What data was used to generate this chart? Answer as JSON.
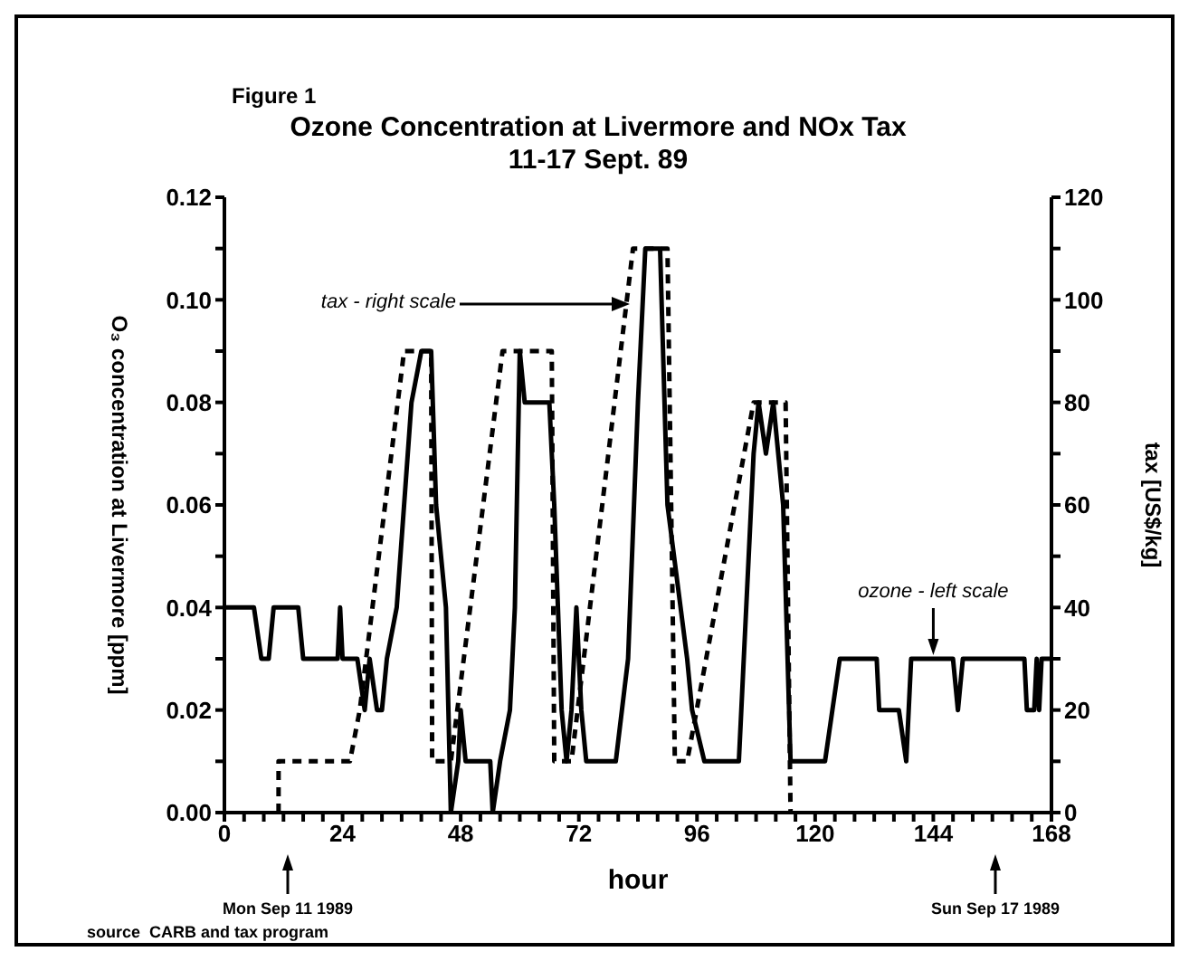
{
  "chart_data": {
    "type": "line",
    "title": "Ozone Concentration at Livermore and NOx Tax",
    "subtitle": "11-17 Sept. 89",
    "xlabel": "hour",
    "ylabel": "O₃ concentration at Livermore [ppm]",
    "y2label": "tax [US$/kg]",
    "annotations": [
      "Figure 1",
      "source  CARB and tax program",
      "tax - right scale",
      "Mon Sep 11 1989",
      "Sun Sep 17 1989",
      {
        "text": "ozone - left scale",
        "x": 144,
        "y": 0.03
      }
    ],
    "series": [
      {
        "color": "#000000",
        "line_style": "solid",
        "x": [
          0,
          6,
          7.5,
          9,
          10,
          15,
          16,
          23,
          23.5,
          24,
          27,
          28.5,
          29.5,
          31,
          32,
          33,
          35,
          38,
          40,
          42,
          43,
          45,
          46,
          47.5,
          48,
          49,
          54,
          54.5,
          56,
          58,
          59,
          60,
          61,
          66,
          67,
          68.5,
          69.5,
          70.5,
          71.5,
          72.5,
          73.5,
          79.5,
          82,
          84,
          85.5,
          88.5,
          90,
          94,
          95,
          97.5,
          104.5,
          107.5,
          108.5,
          110,
          111.5,
          113.5,
          115,
          122,
          123.5,
          125,
          132.5,
          133,
          137,
          138.5,
          139.5,
          148,
          149,
          150,
          162.5,
          163,
          164.5,
          165,
          165.5,
          166,
          168
        ],
        "values": [
          0.04,
          0.04,
          0.03,
          0.03,
          0.04,
          0.04,
          0.03,
          0.03,
          0.04,
          0.03,
          0.03,
          0.02,
          0.03,
          0.02,
          0.02,
          0.03,
          0.04,
          0.08,
          0.09,
          0.09,
          0.06,
          0.04,
          0,
          0.01,
          0.02,
          0.01,
          0.01,
          0,
          0.01,
          0.02,
          0.04,
          0.09,
          0.08,
          0.08,
          0.06,
          0.02,
          0.01,
          0.02,
          0.04,
          0.02,
          0.01,
          0.01,
          0.03,
          0.08,
          0.11,
          0.11,
          0.06,
          0.03,
          0.02,
          0.01,
          0.01,
          0.07,
          0.08,
          0.07,
          0.08,
          0.06,
          0.01,
          0.01,
          0.02,
          0.03,
          0.03,
          0.02,
          0.02,
          0.01,
          0.03,
          0.03,
          0.02,
          0.03,
          0.03,
          0.02,
          0.02,
          0.03,
          0.02,
          0.03,
          0.03
        ]
      },
      {
        "color": "#000000",
        "line_style": "dashed",
        "axis": "y2",
        "x": [
          11,
          11,
          25.5,
          27.5,
          36.5,
          42,
          42.2,
          46,
          56.5,
          66.5,
          67,
          70.5,
          83,
          90,
          91.5,
          94,
          107.5,
          114,
          115
        ],
        "values": [
          0,
          10,
          10,
          20,
          90,
          90,
          10,
          10,
          90,
          90,
          10,
          10,
          110,
          110,
          10,
          10,
          80,
          80,
          0
        ]
      }
    ],
    "xlim": [
      0,
      168
    ],
    "xticks": [
      0,
      {
        "value": 4,
        "label": null
      },
      {
        "value": 8,
        "label": null
      },
      {
        "value": 12,
        "label": null
      },
      {
        "value": 16,
        "label": null
      },
      {
        "value": 20,
        "label": null
      },
      24,
      {
        "value": 28,
        "label": null
      },
      {
        "value": 32,
        "label": null
      },
      {
        "value": 36,
        "label": null
      },
      {
        "value": 40,
        "label": null
      },
      {
        "value": 44,
        "label": null
      },
      48,
      {
        "value": 52,
        "label": null
      },
      {
        "value": 56,
        "label": null
      },
      {
        "value": 60,
        "label": null
      },
      {
        "value": 64,
        "label": null
      },
      {
        "value": 68,
        "label": null
      },
      72,
      {
        "value": 76,
        "label": null
      },
      {
        "value": 80,
        "label": null
      },
      {
        "value": 84,
        "label": null
      },
      {
        "value": 88,
        "label": null
      },
      {
        "value": 92,
        "label": null
      },
      96,
      {
        "value": 100,
        "label": null
      },
      {
        "value": 104,
        "label": null
      },
      {
        "value": 108,
        "label": null
      },
      {
        "value": 112,
        "label": null
      },
      {
        "value": 116,
        "label": null
      },
      120,
      {
        "value": 124,
        "label": null
      },
      {
        "value": 128,
        "label": null
      },
      {
        "value": 132,
        "label": null
      },
      {
        "value": 136,
        "label": null
      },
      {
        "value": 140,
        "label": null
      },
      144,
      {
        "value": 148,
        "label": null
      },
      {
        "value": 152,
        "label": null
      },
      {
        "value": 156,
        "label": null
      },
      {
        "value": 160,
        "label": null
      },
      {
        "value": 164,
        "label": null
      },
      168
    ],
    "ylim": [
      0,
      0.12
    ],
    "yticks": [
      {
        "value": 0,
        "label": "0.00"
      },
      {
        "value": 0.01,
        "label": null
      },
      {
        "value": 0.02,
        "label": "0.02"
      },
      {
        "value": 0.03,
        "label": null
      },
      {
        "value": 0.04,
        "label": "0.04"
      },
      {
        "value": 0.05,
        "label": null
      },
      {
        "value": 0.06,
        "label": "0.06"
      },
      {
        "value": 0.07,
        "label": null
      },
      {
        "value": 0.08,
        "label": "0.08"
      },
      {
        "value": 0.09,
        "label": null
      },
      {
        "value": 0.1,
        "label": "0.10"
      },
      {
        "value": 0.11,
        "label": null
      },
      {
        "value": 0.12,
        "label": "0.12"
      }
    ],
    "y2lim": [
      0,
      120
    ],
    "y2ticks": [
      0,
      {
        "value": 10,
        "label": null
      },
      20,
      {
        "value": 30,
        "label": null
      },
      40,
      {
        "value": 50,
        "label": null
      },
      60,
      {
        "value": 70,
        "label": null
      },
      80,
      {
        "value": 90,
        "label": null
      },
      100,
      {
        "value": 110,
        "label": null
      },
      120
    ],
    "grid": false,
    "legend": false,
    "marker": "none"
  }
}
